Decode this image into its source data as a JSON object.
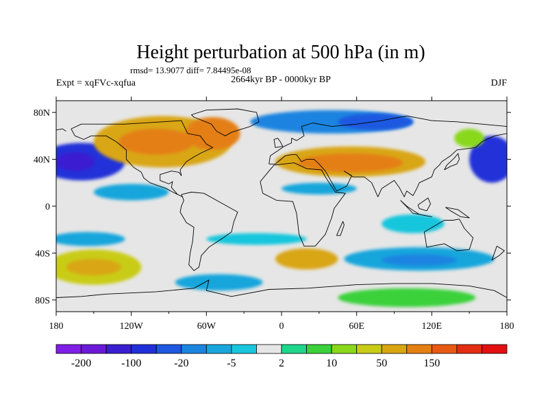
{
  "title": "Height perturbation at 500 hPa (in m)",
  "stats": "rmsd= 13.9077 diff= 7.84495e-08",
  "left_label": "Expt = xqFVc-xqfua",
  "center_label": "2664kyr BP - 0000kyr BP",
  "right_label": "DJF",
  "map": {
    "lon_range": [
      -180,
      180
    ],
    "lat_range": [
      -90,
      90
    ],
    "x_ticks": [
      {
        "lon": -180,
        "label": "180"
      },
      {
        "lon": -120,
        "label": "120W"
      },
      {
        "lon": -60,
        "label": "60W"
      },
      {
        "lon": 0,
        "label": "0"
      },
      {
        "lon": 60,
        "label": "60E"
      },
      {
        "lon": 120,
        "label": "120E"
      },
      {
        "lon": 180,
        "label": "180"
      }
    ],
    "y_ticks": [
      {
        "lat": 80,
        "label": "80N"
      },
      {
        "lat": 40,
        "label": "40N"
      },
      {
        "lat": 0,
        "label": "0"
      },
      {
        "lat": -40,
        "label": "40S"
      },
      {
        "lat": -80,
        "label": "80S"
      }
    ],
    "fields": [
      {
        "name": "north-pacific-low",
        "lon": -160,
        "lat": 38,
        "rlon": 35,
        "rlat": 16,
        "level": 3
      },
      {
        "name": "north-pacific-low-core",
        "lon": -165,
        "lat": 38,
        "rlon": 16,
        "rlat": 8,
        "level": 2
      },
      {
        "name": "nw-pacific-low",
        "lon": 168,
        "lat": 40,
        "rlon": 18,
        "rlat": 20,
        "level": 3
      },
      {
        "name": "north-america-high",
        "lon": -95,
        "lat": 55,
        "rlon": 55,
        "rlat": 22,
        "level": 13
      },
      {
        "name": "north-america-high-core",
        "lon": -100,
        "lat": 55,
        "rlon": 30,
        "rlat": 11,
        "level": 14
      },
      {
        "name": "greenland-high",
        "lon": -55,
        "lat": 62,
        "rlon": 22,
        "rlat": 14,
        "level": 14
      },
      {
        "name": "eurasia-high",
        "lon": 55,
        "lat": 38,
        "rlon": 60,
        "rlat": 13,
        "level": 13
      },
      {
        "name": "eurasia-high-core",
        "lon": 55,
        "lat": 37,
        "rlon": 42,
        "rlat": 8,
        "level": 14
      },
      {
        "name": "arctic-low",
        "lon": 40,
        "lat": 72,
        "rlon": 65,
        "rlat": 10,
        "level": 5
      },
      {
        "name": "arctic-low-core",
        "lon": 75,
        "lat": 72,
        "rlon": 30,
        "rlat": 7,
        "level": 4
      },
      {
        "name": "west-pacific-high",
        "lon": 150,
        "lat": 58,
        "rlon": 12,
        "rlat": 8,
        "level": 11
      },
      {
        "name": "tropical-low-atlantic",
        "lon": -120,
        "lat": 12,
        "rlon": 30,
        "rlat": 7,
        "level": 6
      },
      {
        "name": "tropical-low-africa",
        "lon": 30,
        "lat": 15,
        "rlon": 30,
        "rlat": 5,
        "level": 6
      },
      {
        "name": "south-pacific-high",
        "lon": -150,
        "lat": -52,
        "rlon": 38,
        "rlat": 15,
        "level": 12
      },
      {
        "name": "south-pacific-high-core",
        "lon": -150,
        "lat": -52,
        "rlon": 22,
        "rlat": 7,
        "level": 13
      },
      {
        "name": "south-pacific-low",
        "lon": -155,
        "lat": -28,
        "rlon": 30,
        "rlat": 6,
        "level": 6
      },
      {
        "name": "south-atlantic-high",
        "lon": 20,
        "lat": -45,
        "rlon": 25,
        "rlat": 9,
        "level": 13
      },
      {
        "name": "south-indian-low",
        "lon": 110,
        "lat": -45,
        "rlon": 60,
        "rlat": 10,
        "level": 6
      },
      {
        "name": "south-indian-low-core",
        "lon": 110,
        "lat": -46,
        "rlon": 30,
        "rlat": 5,
        "level": 5
      },
      {
        "name": "southern-ocean-low",
        "lon": -50,
        "lat": -65,
        "rlon": 35,
        "rlat": 7,
        "level": 6
      },
      {
        "name": "antarctic-high",
        "lon": 100,
        "lat": -78,
        "rlon": 55,
        "rlat": 8,
        "level": 10
      },
      {
        "name": "south-pacific-mid",
        "lon": -20,
        "lat": -28,
        "rlon": 40,
        "rlat": 5,
        "level": 7
      },
      {
        "name": "australia-low",
        "lon": 105,
        "lat": -15,
        "rlon": 25,
        "rlat": 8,
        "level": 7
      }
    ]
  },
  "colorbar": {
    "colors": [
      "#7f1fe6",
      "#6a1ad6",
      "#3a1fd0",
      "#2030d8",
      "#1f58e0",
      "#1b84e0",
      "#19a6dc",
      "#19c6dd",
      "#e6e6e6",
      "#1ed58a",
      "#3bd13b",
      "#8ad81b",
      "#c9cc16",
      "#d9a612",
      "#e47f12",
      "#e85a14",
      "#e22d12",
      "#e21010"
    ],
    "labels": [
      {
        "after_box": 1,
        "label": "-200"
      },
      {
        "after_box": 3,
        "label": "-100"
      },
      {
        "after_box": 5,
        "label": "-20"
      },
      {
        "after_box": 7,
        "label": "-5"
      },
      {
        "after_box": 9,
        "label": "2"
      },
      {
        "after_box": 11,
        "label": "10"
      },
      {
        "after_box": 13,
        "label": "50"
      },
      {
        "after_box": 15,
        "label": "150"
      }
    ]
  }
}
